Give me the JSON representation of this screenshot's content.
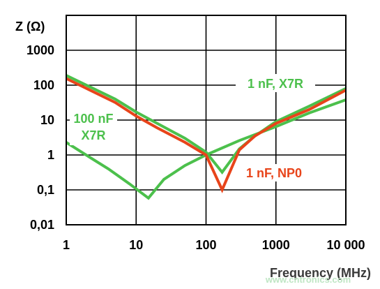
{
  "chart_data": {
    "type": "line",
    "title": "",
    "ylabel": "Z  (Ω)",
    "xlabel": "Frequency (MHz)",
    "x_scale": "log",
    "y_scale": "log",
    "xlim": [
      1,
      10000
    ],
    "ylim": [
      0.01,
      10000
    ],
    "grid": true,
    "x_ticks": [
      {
        "value": 1,
        "label": "1"
      },
      {
        "value": 10,
        "label": "10"
      },
      {
        "value": 100,
        "label": "100"
      },
      {
        "value": 1000,
        "label": "1000"
      },
      {
        "value": 10000,
        "label": "10 000"
      }
    ],
    "y_ticks": [
      {
        "value": 0.01,
        "label": "0,01"
      },
      {
        "value": 0.1,
        "label": "0,1"
      },
      {
        "value": 1,
        "label": "1"
      },
      {
        "value": 10,
        "label": "10"
      },
      {
        "value": 100,
        "label": "100"
      },
      {
        "value": 1000,
        "label": "1000"
      }
    ],
    "series": [
      {
        "name": "100 nF X7R",
        "name_lines": [
          "100 nF",
          "X7R"
        ],
        "color": "#4cc04c",
        "points": [
          [
            1,
            2.3
          ],
          [
            2,
            0.95
          ],
          [
            4,
            0.4
          ],
          [
            8,
            0.15
          ],
          [
            15,
            0.058
          ],
          [
            25,
            0.2
          ],
          [
            50,
            0.5
          ],
          [
            100,
            1.0
          ],
          [
            300,
            2.6
          ],
          [
            1000,
            6.5
          ],
          [
            3000,
            16
          ],
          [
            10000,
            38
          ]
        ]
      },
      {
        "name": "1 nF, X7R",
        "color": "#4cc04c",
        "points": [
          [
            1,
            190
          ],
          [
            5,
            40
          ],
          [
            10,
            17
          ],
          [
            20,
            8
          ],
          [
            50,
            3
          ],
          [
            100,
            1.2
          ],
          [
            170,
            0.32
          ],
          [
            300,
            1.5
          ],
          [
            500,
            3.5
          ],
          [
            1000,
            9
          ],
          [
            3000,
            25
          ],
          [
            10000,
            80
          ]
        ]
      },
      {
        "name": "1 nF, NP0",
        "color": "#e8441a",
        "points": [
          [
            1,
            155
          ],
          [
            5,
            32
          ],
          [
            10,
            13
          ],
          [
            20,
            6
          ],
          [
            50,
            2.3
          ],
          [
            100,
            1.0
          ],
          [
            170,
            0.1
          ],
          [
            300,
            1.4
          ],
          [
            500,
            3.5
          ],
          [
            1000,
            8
          ],
          [
            3000,
            20
          ],
          [
            10000,
            72
          ]
        ]
      }
    ],
    "watermark": "www.cntronics.com"
  }
}
